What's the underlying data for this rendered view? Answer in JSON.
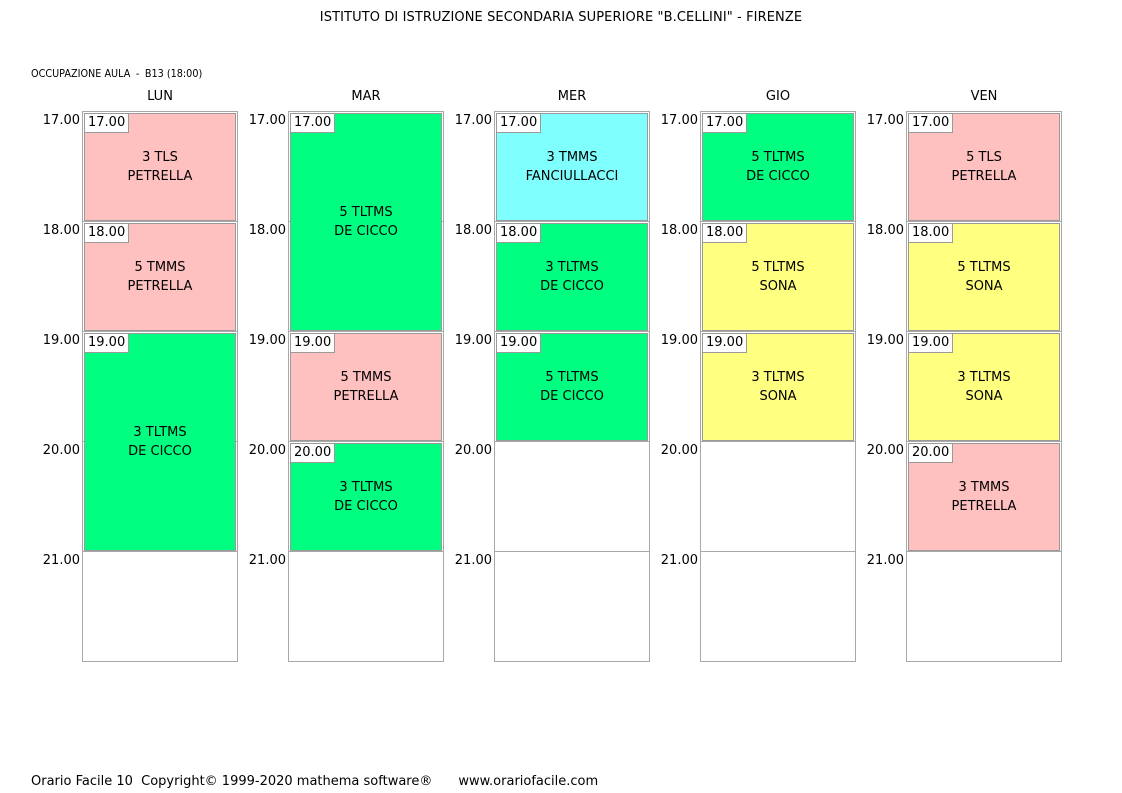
{
  "header": {
    "title": "ISTITUTO DI ISTRUZIONE SECONDARIA SUPERIORE \"B.CELLINI\" - FIRENZE",
    "occupancy_label": "OCCUPAZIONE AULA",
    "room_label": "B13 (18:00)"
  },
  "time_labels": [
    "17.00",
    "18.00",
    "19.00",
    "20.00",
    "21.00"
  ],
  "colors": {
    "pink": "#ffc0c0",
    "green": "#00ff80",
    "cyan": "#80ffff",
    "yellow": "#ffff80",
    "grid": "#a8a8a8"
  },
  "days": [
    {
      "name": "LUN",
      "blocks": [
        {
          "start": "17.00",
          "class": "3 TLS",
          "teacher": "PETRELLA",
          "color": "pink",
          "from": 0,
          "span": 1
        },
        {
          "start": "18.00",
          "class": "5 TMMS",
          "teacher": "PETRELLA",
          "color": "pink",
          "from": 1,
          "span": 1
        },
        {
          "start": "19.00",
          "class": "3 TLTMS",
          "teacher": "DE CICCO",
          "color": "green",
          "from": 2,
          "span": 2
        }
      ]
    },
    {
      "name": "MAR",
      "blocks": [
        {
          "start": "17.00",
          "class": "5 TLTMS",
          "teacher": "DE CICCO",
          "color": "green",
          "from": 0,
          "span": 2
        },
        {
          "start": "19.00",
          "class": "5 TMMS",
          "teacher": "PETRELLA",
          "color": "pink",
          "from": 2,
          "span": 1
        },
        {
          "start": "20.00",
          "class": "3 TLTMS",
          "teacher": "DE CICCO",
          "color": "green",
          "from": 3,
          "span": 1
        }
      ]
    },
    {
      "name": "MER",
      "blocks": [
        {
          "start": "17.00",
          "class": "3 TMMS",
          "teacher": "FANCIULLACCI",
          "color": "cyan",
          "from": 0,
          "span": 1
        },
        {
          "start": "18.00",
          "class": "3 TLTMS",
          "teacher": "DE CICCO",
          "color": "green",
          "from": 1,
          "span": 1
        },
        {
          "start": "19.00",
          "class": "5 TLTMS",
          "teacher": "DE CICCO",
          "color": "green",
          "from": 2,
          "span": 1
        }
      ]
    },
    {
      "name": "GIO",
      "blocks": [
        {
          "start": "17.00",
          "class": "5 TLTMS",
          "teacher": "DE CICCO",
          "color": "green",
          "from": 0,
          "span": 1
        },
        {
          "start": "18.00",
          "class": "5 TLTMS",
          "teacher": "SONA",
          "color": "yellow",
          "from": 1,
          "span": 1
        },
        {
          "start": "19.00",
          "class": "3 TLTMS",
          "teacher": "SONA",
          "color": "yellow",
          "from": 2,
          "span": 1
        }
      ]
    },
    {
      "name": "VEN",
      "blocks": [
        {
          "start": "17.00",
          "class": "5 TLS",
          "teacher": "PETRELLA",
          "color": "pink",
          "from": 0,
          "span": 1
        },
        {
          "start": "18.00",
          "class": "5 TLTMS",
          "teacher": "SONA",
          "color": "yellow",
          "from": 1,
          "span": 1
        },
        {
          "start": "19.00",
          "class": "3 TLTMS",
          "teacher": "SONA",
          "color": "yellow",
          "from": 2,
          "span": 1
        },
        {
          "start": "20.00",
          "class": "3 TMMS",
          "teacher": "PETRELLA",
          "color": "pink",
          "from": 3,
          "span": 1
        }
      ]
    }
  ],
  "footer": {
    "copyright": "Orario Facile 10  Copyright© 1999-2020 mathema software®",
    "website": "www.orariofacile.com"
  }
}
